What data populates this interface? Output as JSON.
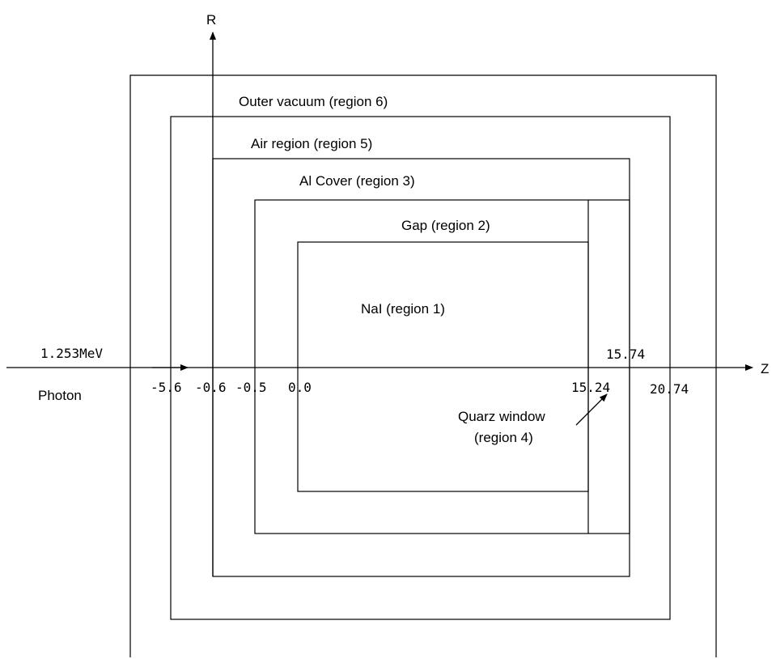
{
  "axes": {
    "r_label": "R",
    "z_label": "Z"
  },
  "source": {
    "energy": "1.253MeV",
    "particle": "Photon"
  },
  "regions": {
    "outer_vacuum": "Outer vacuum  (region 6)",
    "air": "Air region (region 5)",
    "al_cover": "Al Cover (region 3)",
    "gap": "Gap (region 2)",
    "nai": "NaI (region 1)",
    "quartz_line1": "Quarz window",
    "quartz_line2": "(region 4)"
  },
  "z_ticks": {
    "t1": "-5.6",
    "t2": "-0.6",
    "t3": "-0.5",
    "t4": "0.0",
    "t5": "15.24",
    "t6": "15.74",
    "t7": "20.74"
  }
}
